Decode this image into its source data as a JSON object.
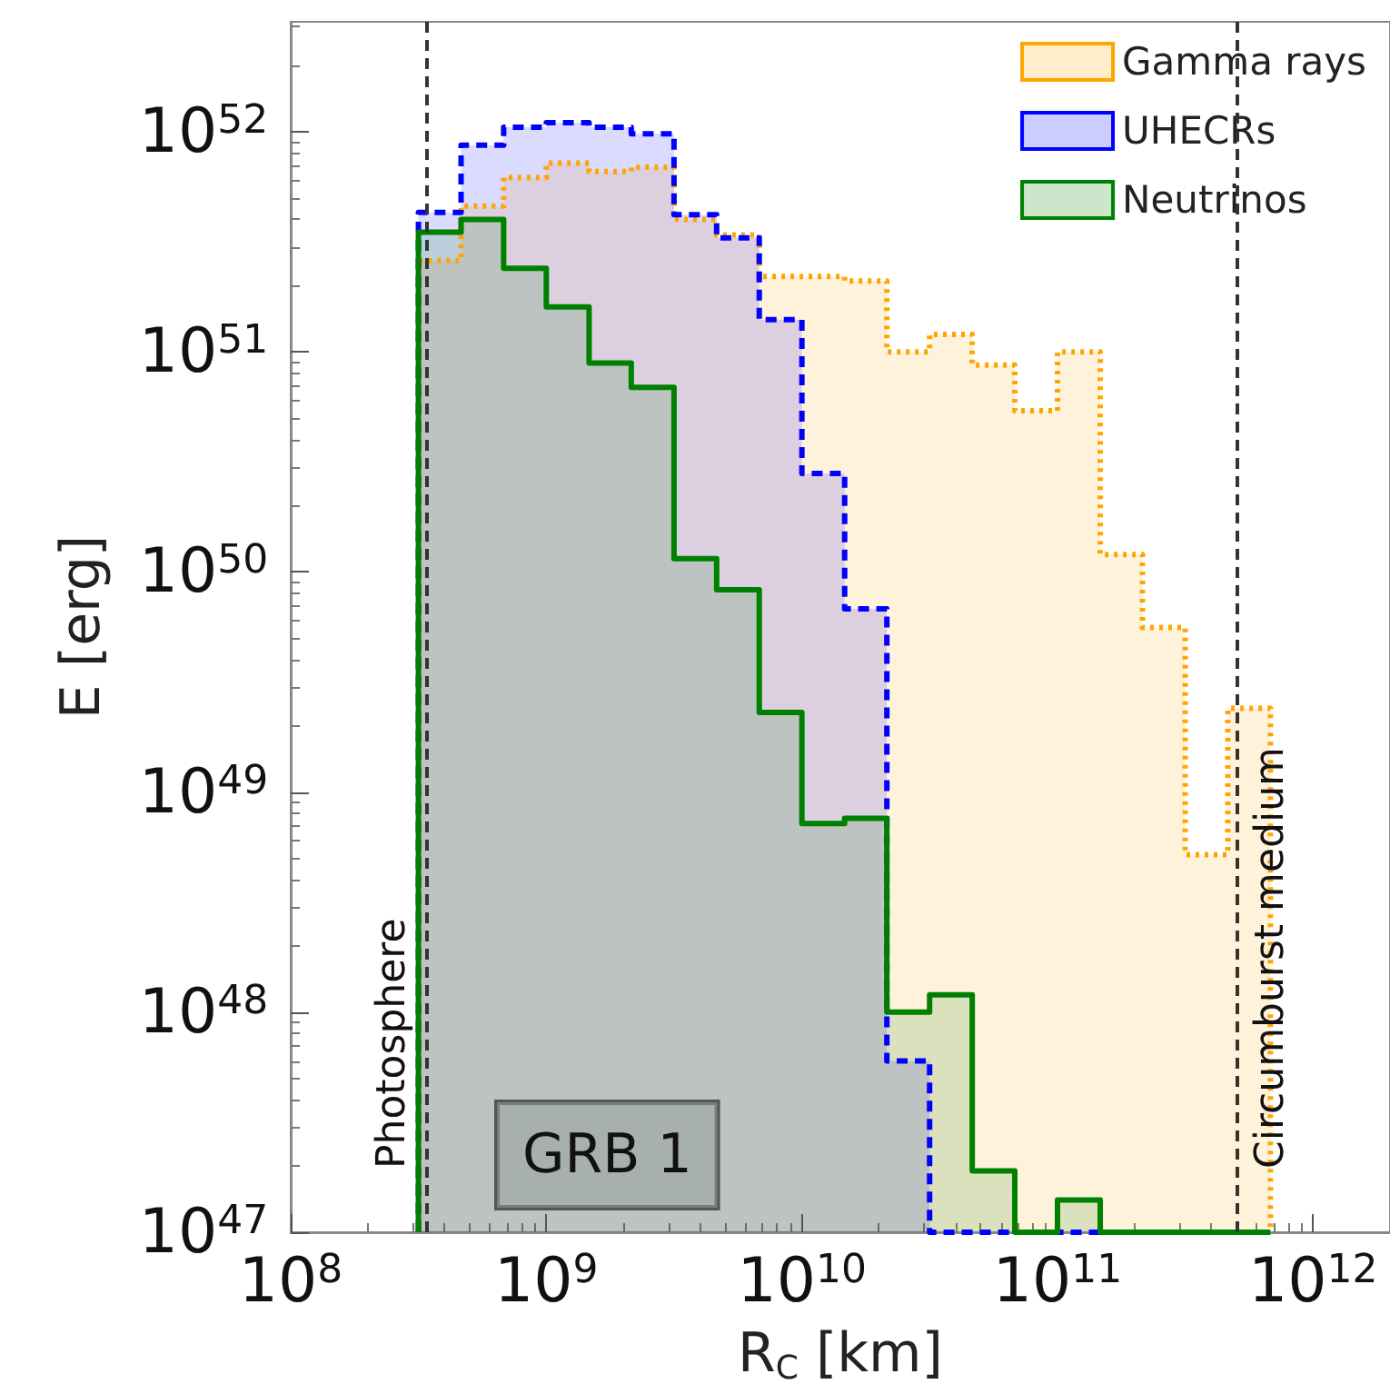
{
  "chart_data": {
    "type": "histogram",
    "xlabel": "R$_{C}$ [km]",
    "ylabel": "E [erg]",
    "bins": [
      316000000.0,
      464000000.0,
      681000000.0,
      1000000000.0,
      1470000000.0,
      2150000000.0,
      3160000000.0,
      4640000000.0,
      6810000000.0,
      10000000000.0,
      14700000000.0,
      21500000000.0,
      31600000000.0,
      46400000000.0,
      68100000000.0,
      100000000000.0,
      147000000000.0,
      215000000000.0,
      316000000000.0,
      464000000000.0,
      681000000000.0
    ],
    "series": [
      {
        "name": "Gamma rays",
        "color": "#ffa500",
        "line_style": "dotted",
        "values": [
          2.6e+51,
          4.6e+51,
          6.2e+51,
          7.2e+51,
          6.6e+51,
          6.9e+51,
          4e+51,
          3.4e+51,
          2.2e+51,
          2.2e+51,
          2.1e+51,
          1e+51,
          1.2e+51,
          8.7e+50,
          5.4e+50,
          1e+51,
          1.2e+50,
          5.6e+49,
          5.2e+48,
          2.4e+49
        ]
      },
      {
        "name": "UHECRs",
        "color": "#0000ff",
        "line_style": "dashed",
        "values": [
          4.3e+51,
          8.7e+51,
          1.05e+52,
          1.1e+52,
          1.05e+52,
          9.8e+51,
          4.2e+51,
          3.3e+51,
          1.4e+51,
          2.8e+50,
          6.8e+49,
          6e+47,
          null,
          null,
          null,
          null,
          null,
          null,
          null,
          null
        ]
      },
      {
        "name": "Neutrinos",
        "color": "#008000",
        "line_style": "solid",
        "values": [
          3.5e+51,
          4e+51,
          2.4e+51,
          1.6e+51,
          8.9e+50,
          6.9e+50,
          1.15e+50,
          8.3e+49,
          2.3e+49,
          7.2e+48,
          7.6e+48,
          1e+48,
          1.2e+48,
          1.9e+47,
          null,
          1.4e+47,
          null,
          null,
          null,
          null
        ]
      }
    ],
    "xlim": [
      100000000.0,
      2000000000000.0
    ],
    "ylim": [
      1e+47,
      3.16e+52
    ],
    "xticks": [
      {
        "value": 100000000.0,
        "label": "10$^{8}$"
      },
      {
        "value": 1000000000.0,
        "label": "10$^{9}$"
      },
      {
        "value": 10000000000.0,
        "label": "10$^{10}$"
      },
      {
        "value": 100000000000.0,
        "label": "10$^{11}$"
      },
      {
        "value": 1000000000000.0,
        "label": "10$^{12}$"
      }
    ],
    "yticks": [
      {
        "value": 1e+47,
        "label": "10$^{47}$"
      },
      {
        "value": 1e+48,
        "label": "10$^{48}$"
      },
      {
        "value": 1e+49,
        "label": "10$^{49}$"
      },
      {
        "value": 1e+50,
        "label": "10$^{50}$"
      },
      {
        "value": 1e+51,
        "label": "10$^{51}$"
      },
      {
        "value": 1e+52,
        "label": "10$^{52}$"
      }
    ],
    "log": "xy",
    "grid": false,
    "legend": "top right",
    "ref_lines": [
      {
        "axis": "x",
        "value": 340000000.0,
        "label": "Photosphere",
        "color": "#333333",
        "line_style": "dashed"
      },
      {
        "axis": "x",
        "value": 500000000000.0,
        "label": "Circumburst medium",
        "color": "#333333",
        "line_style": "dashed"
      }
    ],
    "annotations": [
      "GRB 1"
    ]
  }
}
